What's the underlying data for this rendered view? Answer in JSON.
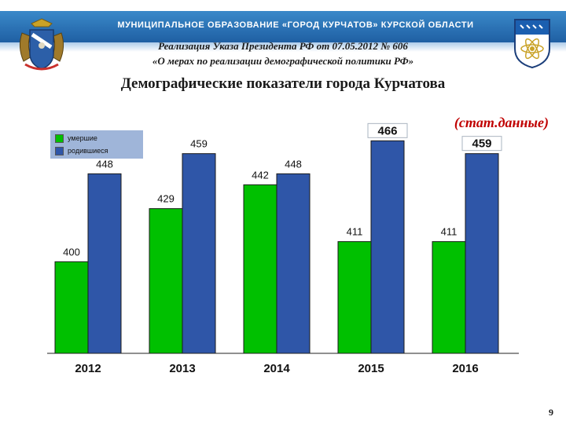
{
  "header": {
    "org_name": "МУНИЦИПАЛЬНОЕ ОБРАЗОВАНИЕ «ГОРОД КУРЧАТОВ» КУРСКОЙ ОБЛАСТИ",
    "subtitle_line1": "Реализация Указа Президента РФ от 07.05.2012 № 606",
    "subtitle_line2": "«О мерах по реализации демографической политики РФ»"
  },
  "page_title": "Демографические показатели города Курчатова",
  "stat_note": "(стат.данные)",
  "page_number": "9",
  "colors": {
    "header_blue": "#2a70b5",
    "deaths_green": "#00c000",
    "births_blue": "#2f56a8",
    "note_red": "#c00000"
  },
  "icons": {
    "left_emblem": "kursk-oblast-coat-of-arms-icon",
    "right_emblem": "kurchatov-coat-of-arms-icon"
  },
  "chart_data": {
    "type": "bar",
    "categories": [
      "2012",
      "2013",
      "2014",
      "2015",
      "2016"
    ],
    "series": [
      {
        "name": "умершие",
        "values": [
          400,
          429,
          442,
          411,
          411
        ],
        "color": "#00c000"
      },
      {
        "name": "родившиеся",
        "values": [
          448,
          459,
          448,
          466,
          459
        ],
        "color": "#2f56a8"
      }
    ],
    "ylim": [
      350,
      470
    ],
    "grid": false,
    "legend_position": "top-left",
    "title": "",
    "xlabel": "",
    "ylabel": ""
  }
}
